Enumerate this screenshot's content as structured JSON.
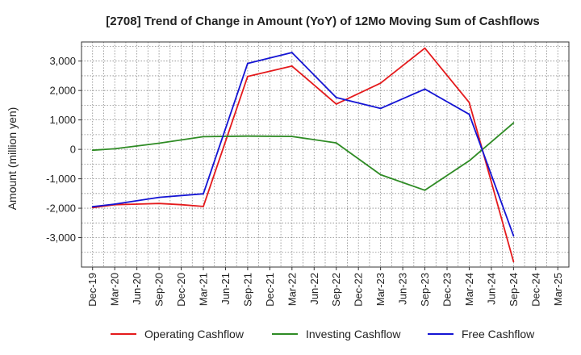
{
  "chart_data": {
    "type": "line",
    "title": "[2708]  Trend of Change in Amount (YoY) of 12Mo Moving Sum of Cashflows",
    "xlabel": "",
    "ylabel": "Amount (million yen)",
    "ylim": [
      -4000,
      3650
    ],
    "yticks": [
      -3000,
      -2000,
      -1000,
      0,
      1000,
      2000,
      3000
    ],
    "ytick_labels": [
      "-3,000",
      "-2,000",
      "-1,000",
      "0",
      "1,000",
      "2,000",
      "3,000"
    ],
    "categories": [
      "Dec-19",
      "Mar-20",
      "Jun-20",
      "Sep-20",
      "Dec-20",
      "Mar-21",
      "Jun-21",
      "Sep-21",
      "Dec-21",
      "Mar-22",
      "Jun-22",
      "Sep-22",
      "Dec-22",
      "Mar-23",
      "Jun-23",
      "Sep-23",
      "Dec-23",
      "Mar-24",
      "Jun-24",
      "Sep-24",
      "Dec-24",
      "Mar-25"
    ],
    "grid": true,
    "legend_position": "bottom",
    "series": [
      {
        "name": "Operating Cashflow",
        "color": "#e41a1c",
        "values": [
          -1980,
          -1880,
          -1860,
          -1840,
          -1880,
          -1940,
          null,
          2480,
          null,
          2830,
          null,
          1540,
          null,
          2250,
          null,
          3440,
          null,
          1590,
          null,
          -3820,
          null,
          null
        ]
      },
      {
        "name": "Investing Cashflow",
        "color": "#2e8b24",
        "values": [
          -30,
          20,
          null,
          210,
          null,
          430,
          null,
          450,
          null,
          440,
          null,
          220,
          null,
          -860,
          null,
          -1390,
          null,
          -390,
          null,
          900,
          null,
          null
        ]
      },
      {
        "name": "Free Cashflow",
        "color": "#1414d4",
        "values": [
          -1950,
          -1860,
          null,
          -1630,
          null,
          -1510,
          null,
          2920,
          null,
          3290,
          null,
          1760,
          null,
          1390,
          null,
          2050,
          null,
          1190,
          null,
          -2940,
          null,
          null
        ]
      }
    ]
  }
}
